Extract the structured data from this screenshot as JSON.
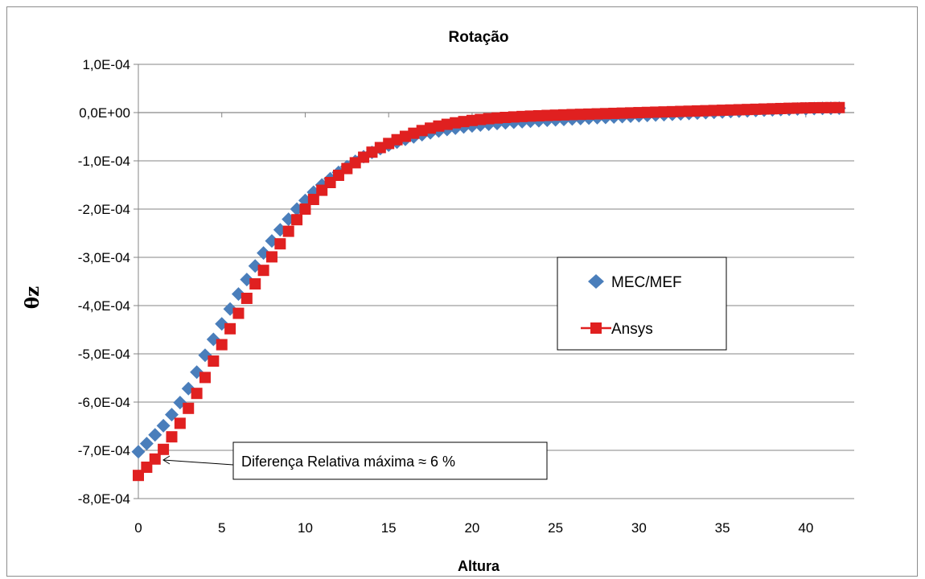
{
  "chart_data": {
    "type": "scatter",
    "title": "Rotação",
    "xlabel": "Altura",
    "ylabel": "θz",
    "xlim": [
      0,
      42.9
    ],
    "ylim": [
      -0.0008,
      0.0001
    ],
    "x_ticks": [
      "0",
      "5",
      "10",
      "15",
      "20",
      "25",
      "30",
      "35",
      "40"
    ],
    "x_tick_values": [
      0,
      5,
      10,
      15,
      20,
      25,
      30,
      35,
      40
    ],
    "y_ticks": [
      "1,0E-04",
      "0,0E+00",
      "-1,0E-04",
      "-2,0E-04",
      "-3,0E-04",
      "-4,0E-04",
      "-5,0E-04",
      "-6,0E-04",
      "-7,0E-04",
      "-8,0E-04"
    ],
    "y_tick_values": [
      0.0001,
      0,
      -0.0001,
      -0.0002,
      -0.0003,
      -0.0004,
      -0.0005,
      -0.0006,
      -0.0007,
      -0.0008
    ],
    "grid": "horizontal",
    "legend_position": "right",
    "annotation": "Diferença Relativa máxima ≈ 6 %",
    "annotation_target": [
      1.0,
      -0.00072
    ],
    "series": [
      {
        "name": "MEC/MEF",
        "marker": "diamond",
        "color": "#4a7ebb",
        "x": [
          0,
          0.5,
          1,
          1.5,
          2,
          2.5,
          3,
          3.5,
          4,
          4.5,
          5,
          5.5,
          6,
          6.5,
          7,
          7.5,
          8,
          8.5,
          9,
          9.5,
          10,
          10.5,
          11,
          11.5,
          12,
          12.5,
          13,
          13.5,
          14,
          14.5,
          15,
          15.5,
          16,
          16.5,
          17,
          17.5,
          18,
          18.5,
          19,
          19.5,
          20,
          20.5,
          21,
          21.5,
          22,
          22.5,
          23,
          23.5,
          24,
          24.5,
          25,
          25.5,
          26,
          26.5,
          27,
          27.5,
          28,
          28.5,
          29,
          29.5,
          30,
          30.5,
          31,
          31.5,
          32,
          32.5,
          33,
          33.5,
          34,
          34.5,
          35,
          35.5,
          36,
          36.5,
          37,
          37.5,
          38,
          38.5,
          39,
          39.5,
          40,
          40.5,
          41,
          41.5,
          42
        ],
        "y": [
          -0.000703,
          -0.000686,
          -0.000668,
          -0.000649,
          -0.000626,
          -0.000601,
          -0.000572,
          -0.000538,
          -0.000503,
          -0.00047,
          -0.000438,
          -0.000407,
          -0.000376,
          -0.000346,
          -0.000318,
          -0.000291,
          -0.000266,
          -0.000243,
          -0.000221,
          -0.0002,
          -0.000182,
          -0.000165,
          -0.00015,
          -0.000137,
          -0.000124,
          -0.000112,
          -0.000101,
          -9.15e-05,
          -8.25e-05,
          -7.45e-05,
          -6.75e-05,
          -6.12e-05,
          -5.55e-05,
          -5.04e-05,
          -4.58e-05,
          -4.18e-05,
          -3.82e-05,
          -3.5e-05,
          -3.22e-05,
          -2.98e-05,
          -2.77e-05,
          -2.58e-05,
          -2.41e-05,
          -2.26e-05,
          -2.12e-05,
          -2e-05,
          -1.89e-05,
          -1.79e-05,
          -1.69e-05,
          -1.59e-05,
          -1.5e-05,
          -1.41e-05,
          -1.32e-05,
          -1.23e-05,
          -1.15e-05,
          -1.07e-05,
          -9.9e-06,
          -9.1e-06,
          -8.3e-06,
          -7.5e-06,
          -6.7e-06,
          -5.9e-06,
          -5.1e-06,
          -4.3e-06,
          -3.5e-06,
          -2.7e-06,
          -1.9e-06,
          -1.1e-06,
          -3e-07,
          5e-07,
          1.3e-06,
          2.1e-06,
          2.9e-06,
          3.6e-06,
          4.3e-06,
          5e-06,
          5.7e-06,
          6.3e-06,
          6.9e-06,
          7.4e-06,
          7.9e-06,
          8.3e-06,
          8.7e-06,
          9e-06,
          9.2e-06
        ]
      },
      {
        "name": "Ansys",
        "marker": "square",
        "color": "#e02020",
        "x": [
          0,
          0.5,
          1,
          1.5,
          2,
          2.5,
          3,
          3.5,
          4,
          4.5,
          5,
          5.5,
          6,
          6.5,
          7,
          7.5,
          8,
          8.5,
          9,
          9.5,
          10,
          10.5,
          11,
          11.5,
          12,
          12.5,
          13,
          13.5,
          14,
          14.5,
          15,
          15.5,
          16,
          16.5,
          17,
          17.5,
          18,
          18.5,
          19,
          19.5,
          20,
          20.5,
          21,
          21.5,
          22,
          22.5,
          23,
          23.5,
          24,
          24.5,
          25,
          25.5,
          26,
          26.5,
          27,
          27.5,
          28,
          28.5,
          29,
          29.5,
          30,
          30.5,
          31,
          31.5,
          32,
          32.5,
          33,
          33.5,
          34,
          34.5,
          35,
          35.5,
          36,
          36.5,
          37,
          37.5,
          38,
          38.5,
          39,
          39.5,
          40,
          40.5,
          41,
          41.5,
          42
        ],
        "y": [
          -0.000752,
          -0.000735,
          -0.000718,
          -0.000698,
          -0.000672,
          -0.000644,
          -0.000613,
          -0.000582,
          -0.000549,
          -0.000515,
          -0.000481,
          -0.000448,
          -0.000416,
          -0.000385,
          -0.000355,
          -0.000327,
          -0.000299,
          -0.000272,
          -0.000246,
          -0.000222,
          -0.0002,
          -0.00018,
          -0.000161,
          -0.000145,
          -0.00013,
          -0.000116,
          -0.000104,
          -9.25e-05,
          -8.2e-05,
          -7.25e-05,
          -6.4e-05,
          -5.62e-05,
          -4.92e-05,
          -4.28e-05,
          -3.72e-05,
          -3.22e-05,
          -2.79e-05,
          -2.43e-05,
          -2.12e-05,
          -1.86e-05,
          -1.63e-05,
          -1.43e-05,
          -1.26e-05,
          -1.12e-05,
          -1e-05,
          -9e-06,
          -8.1e-06,
          -7.3e-06,
          -6.6e-06,
          -5.9e-06,
          -5.3e-06,
          -4.7e-06,
          -4.1e-06,
          -3.6e-06,
          -3.1e-06,
          -2.6e-06,
          -2.1e-06,
          -1.6e-06,
          -1.1e-06,
          -6e-07,
          -1e-07,
          4e-07,
          9e-07,
          1.4e-06,
          1.9e-06,
          2.4e-06,
          2.9e-06,
          3.4e-06,
          3.9e-06,
          4.4e-06,
          4.9e-06,
          5.4e-06,
          5.9e-06,
          6.4e-06,
          6.9e-06,
          7.4e-06,
          7.9e-06,
          8.4e-06,
          8.9e-06,
          9.3e-06,
          9.7e-06,
          1e-05,
          1.02e-05,
          1.03e-05,
          1.04e-05
        ]
      }
    ]
  }
}
